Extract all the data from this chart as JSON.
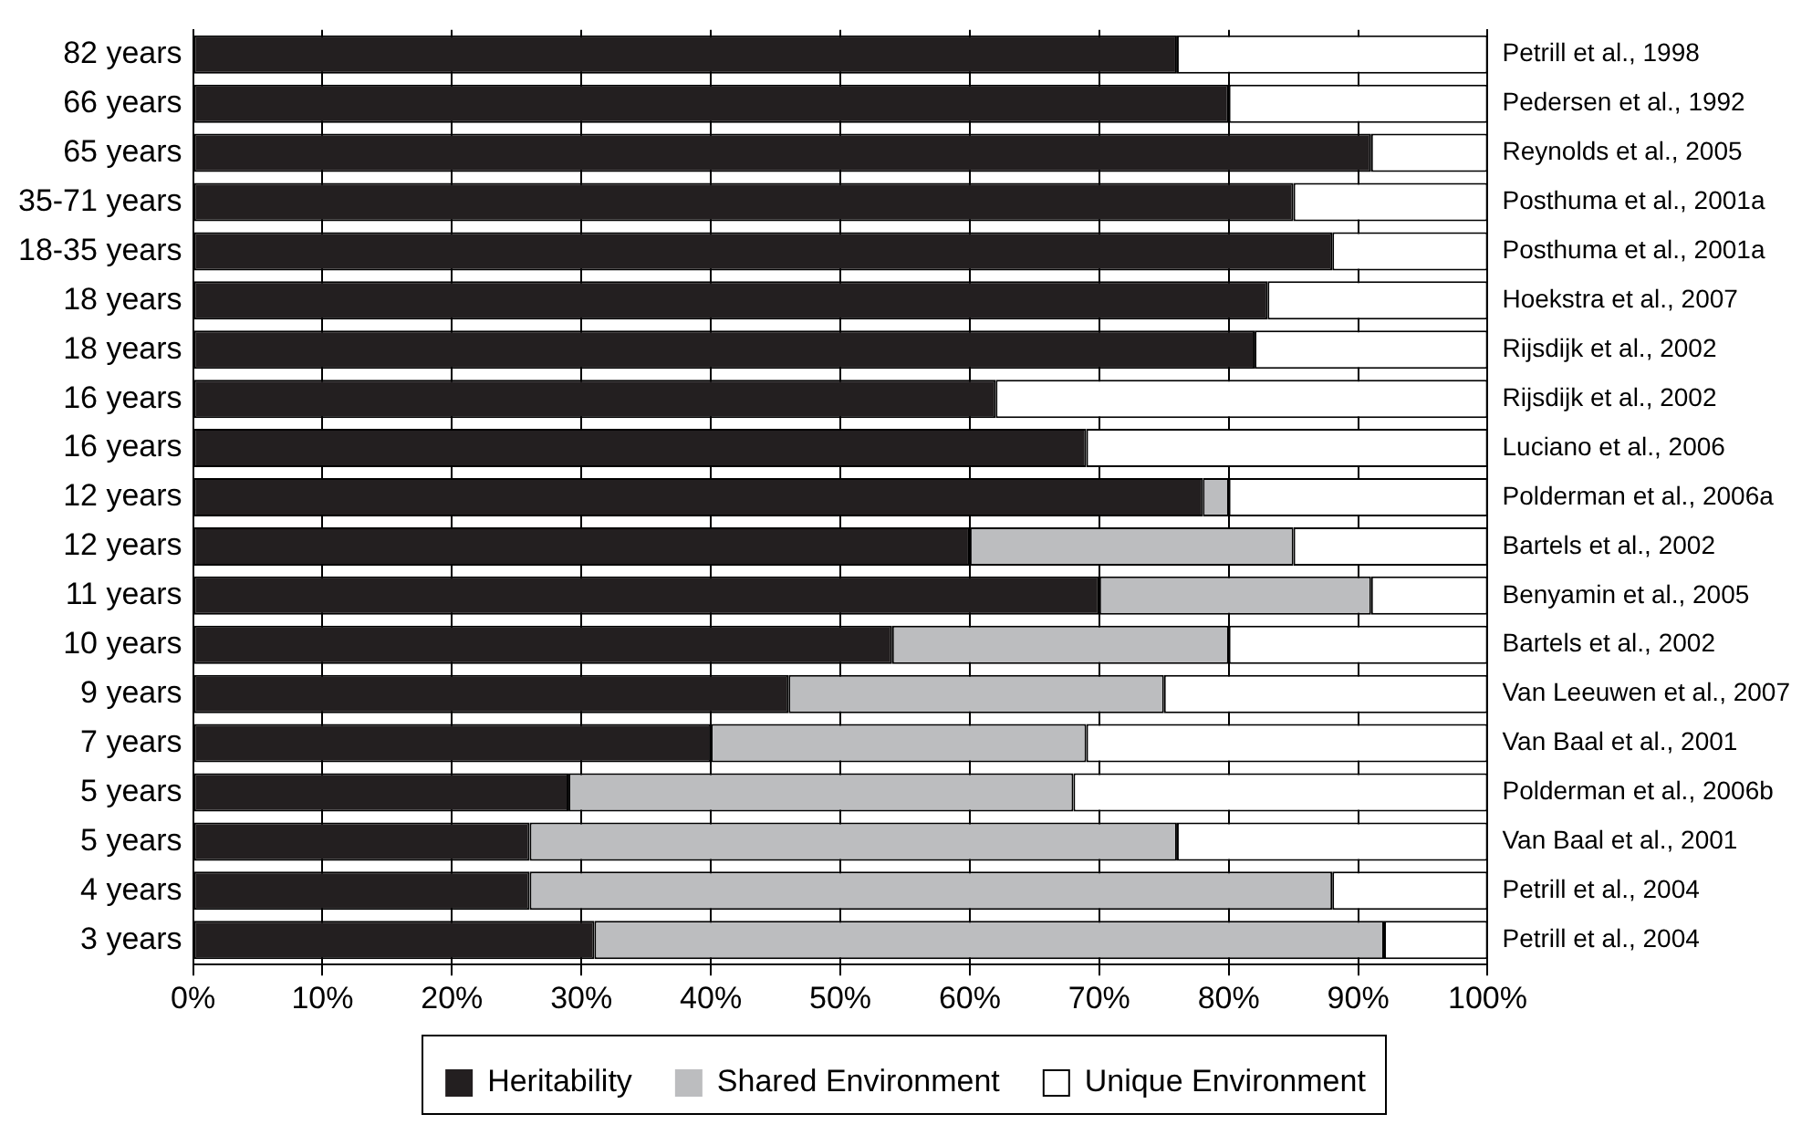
{
  "chart_data": {
    "type": "bar",
    "orientation": "horizontal",
    "stacked": true,
    "categories": [
      "82 years",
      "66 years",
      "65 years",
      "35-71 years",
      "18-35 years",
      "18 years",
      "18 years",
      "16 years",
      "16 years",
      "12 years",
      "12 years",
      "11 years",
      "10 years",
      "9 years",
      "7 years",
      "5 years",
      "5 years",
      "4 years",
      "3 years"
    ],
    "y2_categories": [
      "Petrill et al., 1998",
      "Pedersen et al., 1992",
      "Reynolds et al., 2005",
      "Posthuma et al., 2001a",
      "Posthuma et al., 2001a",
      "Hoekstra et al., 2007",
      "Rijsdijk et al., 2002",
      "Rijsdijk et al., 2002",
      "Luciano et al., 2006",
      "Polderman et al., 2006a",
      "Bartels et al., 2002",
      "Benyamin et al., 2005",
      "Bartels et al., 2002",
      "Van Leeuwen et al., 2007",
      "Van Baal et al., 2001",
      "Polderman et al., 2006b",
      "Van Baal et al., 2001",
      "Petrill et al., 2004",
      "Petrill et al., 2004"
    ],
    "series": [
      {
        "name": "Heritability",
        "color": "#231f20",
        "values": [
          76,
          80,
          91,
          85,
          88,
          83,
          82,
          62,
          69,
          78,
          60,
          70,
          54,
          46,
          40,
          29,
          26,
          26,
          31
        ]
      },
      {
        "name": "Shared Environment",
        "color": "#bcbdbf",
        "values": [
          0,
          0,
          0,
          0,
          0,
          0,
          0,
          0,
          0,
          2,
          25,
          21,
          26,
          29,
          29,
          39,
          50,
          62,
          61
        ]
      },
      {
        "name": "Unique Environment",
        "color": "#ffffff",
        "values": [
          24,
          20,
          9,
          15,
          12,
          17,
          18,
          38,
          31,
          20,
          15,
          9,
          20,
          25,
          31,
          32,
          24,
          12,
          8
        ]
      }
    ],
    "xlim": [
      0,
      100
    ],
    "xticks": [
      {
        "value": 0,
        "label": "0%"
      },
      {
        "value": 10,
        "label": "10%"
      },
      {
        "value": 20,
        "label": "20%"
      },
      {
        "value": 30,
        "label": "30%"
      },
      {
        "value": 40,
        "label": "40%"
      },
      {
        "value": 50,
        "label": "50%"
      },
      {
        "value": 60,
        "label": "60%"
      },
      {
        "value": 70,
        "label": "70%"
      },
      {
        "value": 80,
        "label": "80%"
      },
      {
        "value": 90,
        "label": "90%"
      },
      {
        "value": 100,
        "label": "100%"
      }
    ],
    "grid": "x",
    "legend": "bottom"
  }
}
